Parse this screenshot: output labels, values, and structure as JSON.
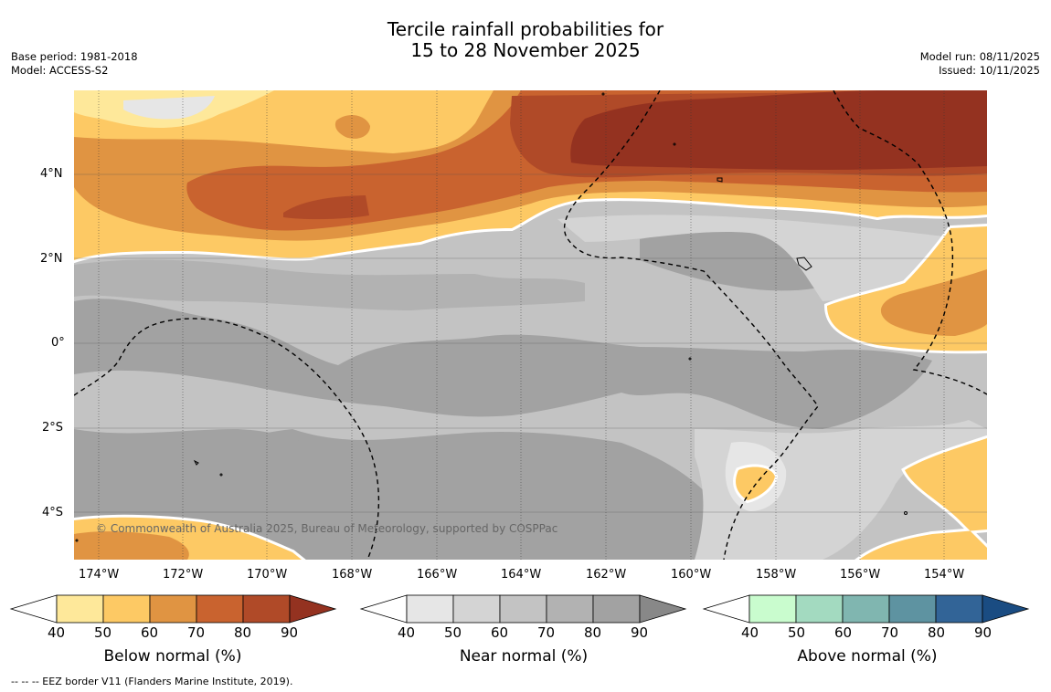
{
  "title": {
    "line1": "Tercile rainfall probabilities for",
    "line2": "15 to 28 November 2025"
  },
  "meta_left": {
    "base_period": "Base period: 1981-2018",
    "model": "Model: ACCESS-S2"
  },
  "meta_right": {
    "model_run": "Model run: 08/11/2025",
    "issued": "Issued: 10/11/2025"
  },
  "map": {
    "lat_labels": [
      "4°N",
      "2°N",
      "0°",
      "2°S",
      "4°S"
    ],
    "lon_labels": [
      "174°W",
      "172°W",
      "170°W",
      "168°W",
      "166°W",
      "164°W",
      "162°W",
      "160°W",
      "158°W",
      "156°W",
      "154°W"
    ],
    "copyright": "© Commonwealth of Australia 2025, Bureau of Meteorology, supported by COSPPac",
    "colors": {
      "below_40": "#fee89a",
      "below_50": "#fdc964",
      "below_60": "#e09442",
      "below_70": "#c9632f",
      "below_80": "#b04a28",
      "below_90": "#943220",
      "near_40": "#e6e6e6",
      "near_50": "#d4d4d4",
      "near_60": "#c3c3c3",
      "near_70": "#b2b2b2",
      "near_80": "#a2a2a2",
      "near_90": "#888888"
    }
  },
  "colorbars": [
    {
      "title": "Below normal (%)",
      "ticks": [
        "40",
        "50",
        "60",
        "70",
        "80",
        "90"
      ],
      "colors": [
        "#fee89a",
        "#fdc964",
        "#e09442",
        "#c9632f",
        "#b04a28",
        "#943220"
      ]
    },
    {
      "title": "Near normal (%)",
      "ticks": [
        "40",
        "50",
        "60",
        "70",
        "80",
        "90"
      ],
      "colors": [
        "#e6e6e6",
        "#d4d4d4",
        "#c3c3c3",
        "#b2b2b2",
        "#a2a2a2",
        "#888888"
      ]
    },
    {
      "title": "Above normal (%)",
      "ticks": [
        "40",
        "50",
        "60",
        "70",
        "80",
        "90"
      ],
      "colors": [
        "#c9fcce",
        "#a3dac0",
        "#80b6b0",
        "#5e93a1",
        "#326497",
        "#1a4c82"
      ]
    }
  ],
  "footnote": "-- -- -- EEZ border V11 (Flanders Marine Institute, 2019)."
}
